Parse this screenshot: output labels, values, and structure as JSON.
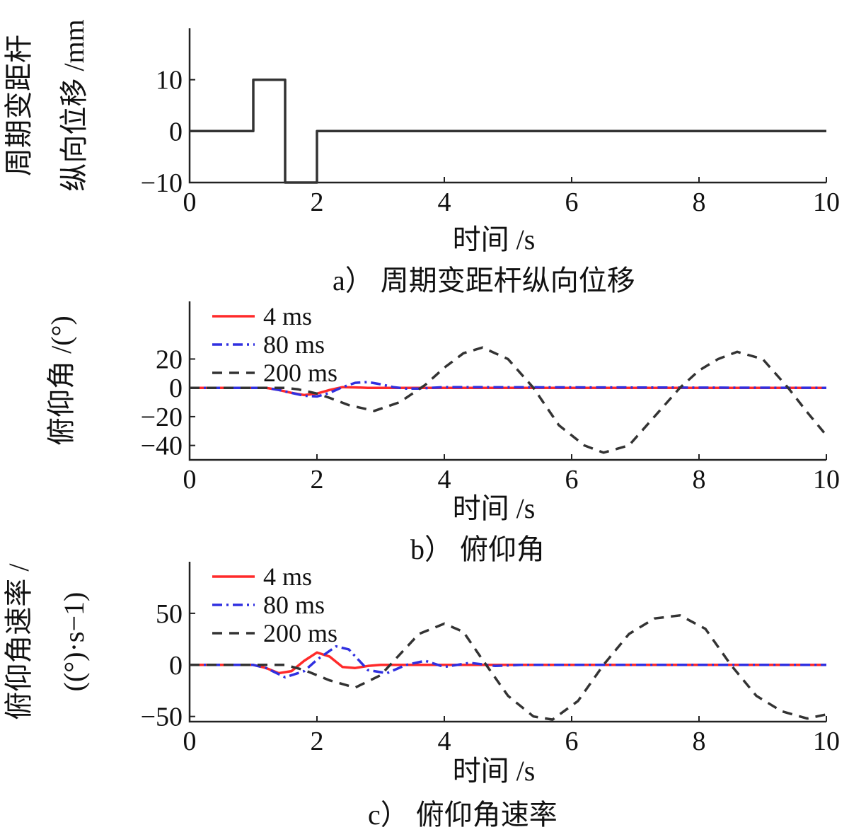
{
  "chart_data": [
    {
      "type": "line",
      "caption": "a） 周期变距杆纵向位移",
      "xlabel": "时间 /s",
      "ylabel_lines": [
        "周期变距杆",
        "纵向位移 /mm"
      ],
      "xlim": [
        0,
        10
      ],
      "ylim": [
        -10,
        20
      ],
      "xticks": [
        0,
        2,
        4,
        6,
        8,
        10
      ],
      "yticks": [
        -10,
        0,
        10
      ],
      "ytick_labels": [
        "−10",
        "0",
        "10"
      ],
      "series": [
        {
          "color": "#333333",
          "dash": "solid",
          "x": [
            0,
            1,
            1,
            1.5,
            1.5,
            2,
            2,
            10
          ],
          "y": [
            0,
            0,
            10,
            10,
            -10,
            -10,
            0,
            0
          ]
        }
      ]
    },
    {
      "type": "line",
      "caption": "b） 俯仰角",
      "xlabel": "时间 /s",
      "ylabel_lines": [
        "俯仰角 /(°)"
      ],
      "xlim": [
        0,
        10
      ],
      "ylim": [
        -50,
        60
      ],
      "xticks": [
        0,
        2,
        4,
        6,
        8,
        10
      ],
      "yticks": [
        -40,
        -20,
        0,
        20
      ],
      "ytick_labels": [
        "−40",
        "−20",
        "0",
        "20"
      ],
      "legend": [
        "4 ms",
        "80 ms",
        "200 ms"
      ],
      "legend_position": "top-left",
      "series": [
        {
          "name": "4 ms",
          "color": "#ff2a2a",
          "dash": "solid",
          "x": [
            0,
            1.2,
            1.4,
            1.6,
            1.8,
            2.0,
            2.2,
            2.4,
            2.6,
            2.8,
            3.0,
            10
          ],
          "y": [
            0,
            0,
            -1.5,
            -3.5,
            -5,
            -4,
            -1.5,
            0.5,
            0.3,
            0,
            0,
            0
          ]
        },
        {
          "name": "80 ms",
          "color": "#3030e0",
          "dash": "dashdot",
          "x": [
            0,
            1.2,
            1.4,
            1.6,
            1.8,
            2.0,
            2.2,
            2.4,
            2.6,
            2.8,
            3.0,
            3.2,
            3.4,
            3.6,
            3.8,
            4.0,
            10
          ],
          "y": [
            0,
            0,
            -1.5,
            -3.5,
            -5.5,
            -6,
            -3.5,
            0.5,
            3.5,
            4,
            2.5,
            0.5,
            -0.5,
            -0.5,
            0,
            0.5,
            0
          ]
        },
        {
          "name": "200 ms",
          "color": "#333333",
          "dash": "dashed",
          "x": [
            0,
            1.5,
            1.7,
            2.0,
            2.2,
            2.5,
            2.9,
            3.3,
            3.7,
            4.0,
            4.3,
            4.6,
            5.0,
            5.4,
            5.8,
            6.2,
            6.5,
            6.9,
            7.3,
            7.7,
            8.0,
            8.3,
            8.6,
            9.0,
            9.4,
            9.7,
            10.0
          ],
          "y": [
            0,
            0,
            -1,
            -4,
            -7,
            -12,
            -16,
            -10,
            2,
            14,
            24,
            28,
            20,
            0,
            -26,
            -40,
            -45,
            -40,
            -20,
            0,
            12,
            20,
            25,
            20,
            0,
            -17,
            -33
          ]
        }
      ]
    },
    {
      "type": "line",
      "caption": "c） 俯仰角速率",
      "xlabel": "时间 /s",
      "ylabel_lines": [
        "俯仰角速率 /",
        "((°)·s−1)"
      ],
      "xlim": [
        0,
        10
      ],
      "ylim": [
        -55,
        100
      ],
      "xticks": [
        0,
        2,
        4,
        6,
        8,
        10
      ],
      "yticks": [
        -50,
        0,
        50
      ],
      "ytick_labels": [
        "−50",
        "0",
        "50"
      ],
      "legend": [
        "4 ms",
        "80 ms",
        "200 ms"
      ],
      "legend_position": "top-left",
      "series": [
        {
          "name": "4 ms",
          "color": "#ff2a2a",
          "dash": "solid",
          "x": [
            0,
            1.0,
            1.2,
            1.4,
            1.6,
            1.8,
            2.0,
            2.2,
            2.4,
            2.6,
            2.8,
            3.0,
            3.2,
            3.4,
            10
          ],
          "y": [
            0,
            0,
            -3,
            -8,
            -6,
            4,
            12,
            8,
            -2,
            -3,
            -1,
            0,
            0,
            0,
            0
          ]
        },
        {
          "name": "80 ms",
          "color": "#3030e0",
          "dash": "dashdot",
          "x": [
            0,
            1.0,
            1.2,
            1.5,
            1.8,
            2.0,
            2.3,
            2.5,
            2.8,
            3.1,
            3.4,
            3.7,
            4.0,
            4.4,
            4.8,
            5.2,
            10
          ],
          "y": [
            0,
            0,
            -3,
            -12,
            -6,
            5,
            18,
            15,
            -5,
            -8,
            0,
            4,
            -2,
            2,
            -1,
            0,
            0
          ]
        },
        {
          "name": "200 ms",
          "color": "#333333",
          "dash": "dashed",
          "x": [
            0,
            1.2,
            1.5,
            1.8,
            2.2,
            2.6,
            3.0,
            3.3,
            3.6,
            4.0,
            4.3,
            4.6,
            5.0,
            5.4,
            5.7,
            6.1,
            6.5,
            6.9,
            7.3,
            7.7,
            8.1,
            8.5,
            8.9,
            9.3,
            9.7,
            10.0
          ],
          "y": [
            0,
            0,
            0,
            -5,
            -15,
            -22,
            -10,
            10,
            30,
            40,
            32,
            5,
            -30,
            -50,
            -53,
            -35,
            0,
            30,
            45,
            48,
            35,
            0,
            -30,
            -45,
            -52,
            -48
          ]
        }
      ]
    }
  ]
}
